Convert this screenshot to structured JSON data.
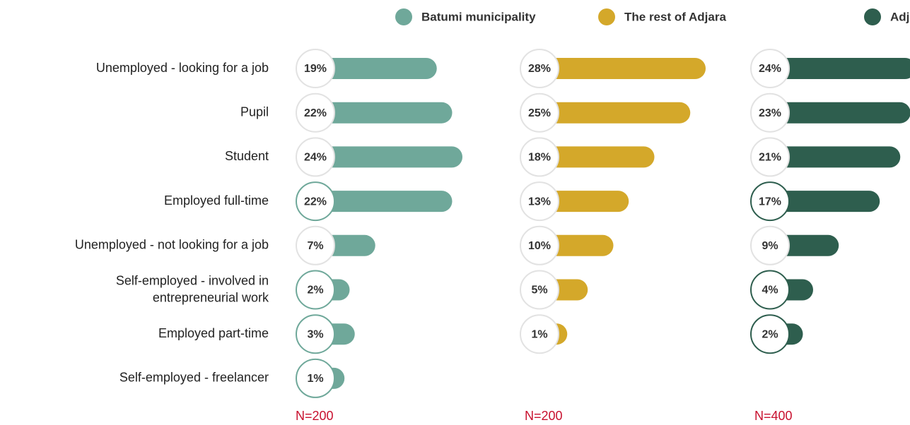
{
  "chart_data": {
    "type": "bar",
    "orientation": "horizontal",
    "categories": [
      "Unemployed - looking for a job",
      "Pupil",
      "Student",
      "Employed full-time",
      "Unemployed - not looking for a job",
      "Self-employed - involved in entrepreneurial work",
      "Employed part-time",
      "Self-employed - freelancer"
    ],
    "series": [
      {
        "name": "Batumi municipality",
        "color": "#6fa89a",
        "values": [
          19,
          22,
          24,
          22,
          7,
          2,
          3,
          1
        ],
        "value_labels": [
          "19%",
          "22%",
          "24%",
          "22%",
          "7%",
          "2%",
          "3%",
          "1%"
        ],
        "outlined": [
          false,
          false,
          false,
          true,
          false,
          true,
          true,
          true
        ],
        "annotation": "N=200"
      },
      {
        "name": "The rest of Adjara",
        "color": "#d4a82a",
        "values": [
          28,
          25,
          18,
          13,
          10,
          5,
          1,
          null
        ],
        "value_labels": [
          "28%",
          "25%",
          "18%",
          "13%",
          "10%",
          "5%",
          "1%",
          null
        ],
        "outlined": [
          false,
          false,
          false,
          false,
          false,
          false,
          false,
          false
        ],
        "annotation": "N=200"
      },
      {
        "name": "Adjara region",
        "color": "#2e5e4e",
        "values": [
          24,
          23,
          21,
          17,
          9,
          4,
          2,
          null
        ],
        "value_labels": [
          "24%",
          "23%",
          "21%",
          "17%",
          "9%",
          "4%",
          "2%",
          null
        ],
        "outlined": [
          false,
          false,
          false,
          true,
          false,
          true,
          true,
          false
        ],
        "annotation": "N=400"
      }
    ],
    "legend": "top-right"
  }
}
